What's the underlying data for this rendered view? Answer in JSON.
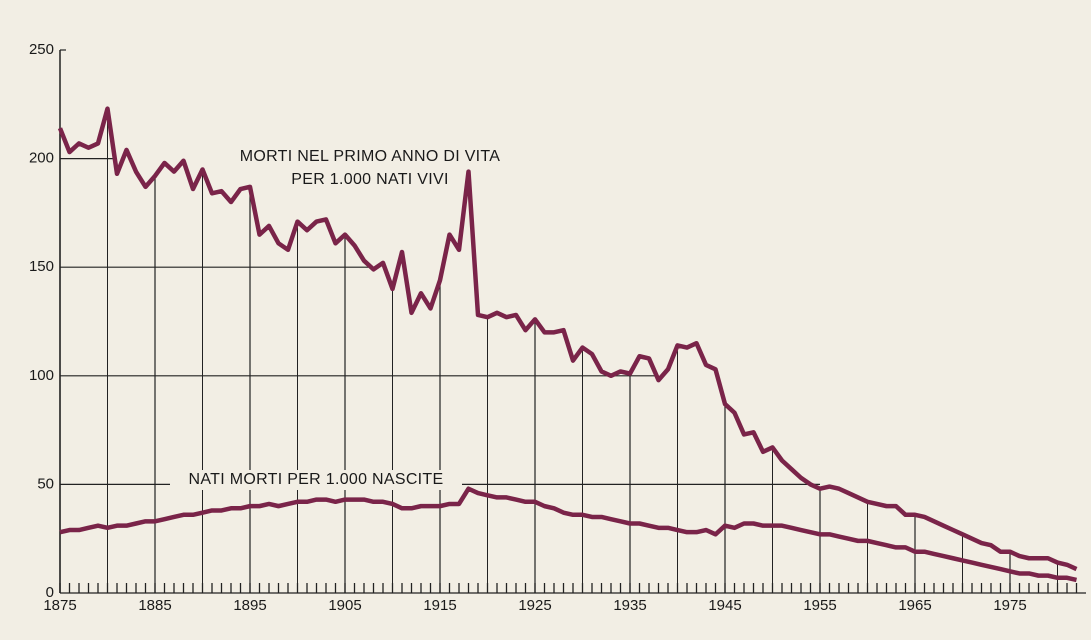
{
  "chart_data": {
    "type": "line",
    "x": [
      1875,
      1876,
      1877,
      1878,
      1879,
      1880,
      1881,
      1882,
      1883,
      1884,
      1885,
      1886,
      1887,
      1888,
      1889,
      1890,
      1891,
      1892,
      1893,
      1894,
      1895,
      1896,
      1897,
      1898,
      1899,
      1900,
      1901,
      1902,
      1903,
      1904,
      1905,
      1906,
      1907,
      1908,
      1909,
      1910,
      1911,
      1912,
      1913,
      1914,
      1915,
      1916,
      1917,
      1918,
      1919,
      1920,
      1921,
      1922,
      1923,
      1924,
      1925,
      1926,
      1927,
      1928,
      1929,
      1930,
      1931,
      1932,
      1933,
      1934,
      1935,
      1936,
      1937,
      1938,
      1939,
      1940,
      1941,
      1942,
      1943,
      1944,
      1945,
      1946,
      1947,
      1948,
      1949,
      1950,
      1951,
      1952,
      1953,
      1954,
      1955,
      1956,
      1957,
      1958,
      1959,
      1960,
      1961,
      1962,
      1963,
      1964,
      1965,
      1966,
      1967,
      1968,
      1969,
      1970,
      1971,
      1972,
      1973,
      1974,
      1975,
      1976,
      1977,
      1978,
      1979,
      1980,
      1981,
      1982
    ],
    "series": [
      {
        "name": "MORTI NEL PRIMO ANNO DI VITA",
        "subname": "PER 1.000 NATI VIVI",
        "color": "#7a2449",
        "values": [
          214,
          203,
          207,
          205,
          207,
          223,
          193,
          204,
          194,
          187,
          192,
          198,
          194,
          199,
          186,
          195,
          184,
          185,
          180,
          186,
          187,
          165,
          169,
          161,
          158,
          171,
          167,
          171,
          172,
          161,
          165,
          160,
          153,
          149,
          152,
          140,
          157,
          129,
          138,
          131,
          144,
          165,
          158,
          194,
          128,
          127,
          129,
          127,
          128,
          121,
          126,
          120,
          120,
          121,
          107,
          113,
          110,
          102,
          100,
          102,
          101,
          109,
          108,
          98,
          103,
          114,
          113,
          115,
          105,
          103,
          87,
          83,
          73,
          74,
          65,
          67,
          61,
          57,
          53,
          50,
          48,
          49,
          48,
          46,
          44,
          42,
          41,
          40,
          40,
          36,
          36,
          35,
          33,
          31,
          29,
          27,
          25,
          23,
          22,
          19,
          19,
          17,
          16,
          16,
          16,
          14,
          13,
          11
        ]
      },
      {
        "name": "NATI MORTI PER 1.000 NASCITE",
        "color": "#7a2449",
        "values": [
          28,
          29,
          29,
          30,
          31,
          30,
          31,
          31,
          32,
          33,
          33,
          34,
          35,
          36,
          36,
          37,
          38,
          38,
          39,
          39,
          40,
          40,
          41,
          40,
          41,
          42,
          42,
          43,
          43,
          42,
          43,
          43,
          43,
          42,
          42,
          41,
          39,
          39,
          40,
          40,
          40,
          41,
          41,
          48,
          46,
          45,
          44,
          44,
          43,
          42,
          42,
          40,
          39,
          37,
          36,
          36,
          35,
          35,
          34,
          33,
          32,
          32,
          31,
          30,
          30,
          29,
          28,
          28,
          29,
          27,
          31,
          30,
          32,
          32,
          31,
          31,
          31,
          30,
          29,
          28,
          27,
          27,
          26,
          25,
          24,
          24,
          23,
          22,
          21,
          21,
          19,
          19,
          18,
          17,
          16,
          15,
          14,
          13,
          12,
          11,
          10,
          9,
          9,
          8,
          8,
          7,
          7,
          6
        ]
      }
    ],
    "xlim": [
      1875,
      1983
    ],
    "xticks": [
      1875,
      1885,
      1895,
      1905,
      1915,
      1925,
      1935,
      1945,
      1955,
      1965,
      1975
    ],
    "ylim": [
      0,
      250
    ],
    "yticks": [
      0,
      50,
      100,
      150,
      200,
      250
    ]
  }
}
